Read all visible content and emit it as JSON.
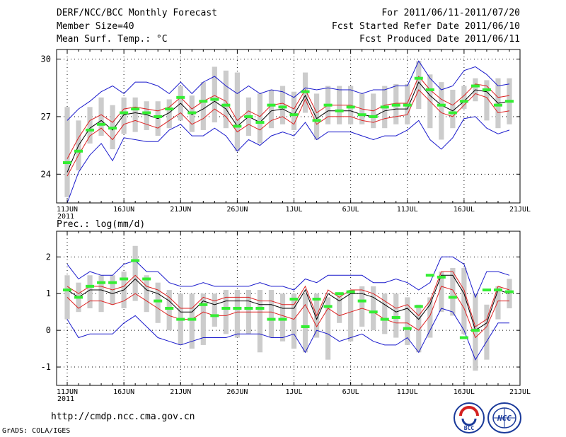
{
  "header": {
    "title": "DERF/NCC/BCC Monthly Forecast",
    "member_size": "Member Size=40",
    "variable1": "Mean Surf. Temp.: °C",
    "period": "For 2011/06/11-2011/07/20",
    "started": "Fcst Started Refer Date 2011/06/10",
    "produced": "Fcst Produced Date 2011/06/11"
  },
  "footer": {
    "url": "http://cmdp.ncc.cma.gov.cn",
    "credit": "GrADS: COLA/IGES",
    "logo_bcc": "BCC",
    "logo_ncc": "NCC"
  },
  "colors": {
    "box": "#cccccc",
    "median": "#000000",
    "inner": "#dd2222",
    "outer": "#1a1acc",
    "obs": "#33ee33",
    "grid": "#000000"
  },
  "chart_data": [
    {
      "type": "line",
      "title": "",
      "ylabel": "Mean Surf. Temp.: °C",
      "ylim": [
        22.5,
        30.5
      ],
      "yticks": [
        24,
        27,
        30
      ],
      "ytick_labels": [
        "24",
        "27",
        "30"
      ],
      "x_days": 40,
      "xtick_labels": [
        "11JUN",
        "16JUN",
        "21JUN",
        "26JUN",
        "1JUL",
        "6JUL",
        "11JUL",
        "16JUL",
        "21JUL"
      ],
      "year_label": "2011",
      "series": [
        {
          "name": "box_low",
          "values": [
            22.8,
            24.2,
            25.6,
            26.0,
            25.3,
            26.1,
            26.2,
            26.3,
            26.0,
            26.4,
            26.8,
            26.2,
            26.3,
            26.7,
            26.4,
            25.2,
            26.0,
            25.6,
            26.4,
            26.6,
            26.3,
            27.2,
            25.8,
            26.6,
            26.6,
            26.6,
            26.6,
            26.4,
            26.4,
            26.6,
            26.6,
            27.4,
            26.4,
            25.8,
            26.4,
            27.4,
            27.8,
            26.8,
            26.4,
            26.6
          ]
        },
        {
          "name": "box_high",
          "values": [
            27.5,
            26.8,
            27.5,
            28.0,
            27.6,
            28.0,
            28.0,
            27.8,
            27.8,
            27.9,
            28.6,
            28.1,
            28.8,
            29.6,
            29.4,
            29.3,
            28.0,
            28.2,
            28.4,
            28.6,
            28.3,
            29.3,
            28.2,
            28.6,
            28.6,
            28.6,
            28.2,
            28.2,
            28.6,
            28.7,
            28.7,
            29.9,
            29.2,
            28.8,
            28.4,
            28.6,
            29.0,
            28.9,
            29.0,
            29.0
          ]
        },
        {
          "name": "outer_low",
          "values": [
            22.5,
            24.1,
            25.0,
            25.6,
            24.7,
            25.9,
            25.8,
            25.7,
            25.7,
            26.3,
            26.6,
            26.0,
            26.0,
            26.4,
            26.0,
            25.2,
            25.8,
            25.5,
            26.0,
            26.2,
            26.0,
            26.7,
            25.8,
            26.2,
            26.2,
            26.2,
            26.0,
            25.8,
            26.0,
            26.0,
            26.3,
            26.8,
            25.8,
            25.3,
            25.9,
            26.9,
            27.0,
            26.4,
            26.1,
            26.3
          ]
        },
        {
          "name": "inner_low",
          "values": [
            23.9,
            25.0,
            26.0,
            26.4,
            25.8,
            26.6,
            26.8,
            26.6,
            26.4,
            26.8,
            27.2,
            26.6,
            26.9,
            27.4,
            27.0,
            26.2,
            26.6,
            26.3,
            26.8,
            27.0,
            26.6,
            27.9,
            26.6,
            27.0,
            27.0,
            27.0,
            26.8,
            26.7,
            26.9,
            27.0,
            27.1,
            28.4,
            27.8,
            27.2,
            27.0,
            27.6,
            28.2,
            28.0,
            27.2,
            27.3
          ]
        },
        {
          "name": "median",
          "values": [
            24.1,
            25.5,
            26.4,
            26.8,
            26.3,
            27.1,
            27.2,
            27.1,
            26.9,
            27.2,
            27.7,
            27.1,
            27.4,
            27.8,
            27.4,
            26.5,
            27.0,
            26.7,
            27.3,
            27.4,
            27.1,
            28.1,
            26.9,
            27.3,
            27.3,
            27.3,
            27.1,
            27.0,
            27.3,
            27.4,
            27.4,
            28.8,
            28.1,
            27.6,
            27.3,
            27.8,
            28.4,
            28.3,
            27.7,
            27.8
          ]
        },
        {
          "name": "inner_high",
          "values": [
            24.8,
            25.9,
            26.8,
            27.1,
            26.7,
            27.4,
            27.5,
            27.4,
            27.3,
            27.5,
            28.0,
            27.4,
            27.8,
            28.1,
            27.8,
            26.8,
            27.3,
            27.0,
            27.6,
            27.7,
            27.4,
            28.4,
            27.2,
            27.6,
            27.6,
            27.6,
            27.4,
            27.3,
            27.6,
            27.7,
            27.7,
            29.1,
            28.4,
            27.9,
            27.6,
            28.1,
            28.7,
            28.6,
            28.0,
            28.1
          ]
        },
        {
          "name": "outer_high",
          "values": [
            26.8,
            27.4,
            27.8,
            28.3,
            28.6,
            28.2,
            28.8,
            28.8,
            28.6,
            28.2,
            28.8,
            28.2,
            28.8,
            29.1,
            28.6,
            28.2,
            28.6,
            28.2,
            28.4,
            28.3,
            28.0,
            28.5,
            28.4,
            28.5,
            28.4,
            28.4,
            28.2,
            28.4,
            28.4,
            28.6,
            28.6,
            29.9,
            29.0,
            28.4,
            28.6,
            29.4,
            29.6,
            29.2,
            28.6,
            28.7
          ]
        },
        {
          "name": "observed",
          "values": [
            24.6,
            25.2,
            26.3,
            26.6,
            26.4,
            27.2,
            27.4,
            27.2,
            27.0,
            27.4,
            28.0,
            27.2,
            27.8,
            27.9,
            27.6,
            26.5,
            27.0,
            26.7,
            27.6,
            27.5,
            27.1,
            28.3,
            26.8,
            27.6,
            27.3,
            27.5,
            27.1,
            27.0,
            27.5,
            27.6,
            27.6,
            29.0,
            28.4,
            27.6,
            27.2,
            27.8,
            28.6,
            28.4,
            27.6,
            27.8
          ]
        }
      ]
    },
    {
      "type": "line",
      "title": "",
      "ylabel": "Prec.: log(mm/d)",
      "ylim": [
        -1.5,
        2.7
      ],
      "yticks": [
        -1,
        0,
        1,
        2
      ],
      "ytick_labels": [
        "-1",
        "0",
        "1",
        "2"
      ],
      "x_days": 40,
      "xtick_labels": [
        "11JUN",
        "16JUN",
        "21JUN",
        "26JUN",
        "1JUL",
        "6JUL",
        "11JUL",
        "16JUL",
        "21JUL"
      ],
      "year_label": "2011",
      "series": [
        {
          "name": "box_low",
          "values": [
            0.3,
            0.5,
            0.6,
            0.5,
            0.7,
            0.6,
            0.8,
            0.5,
            0.2,
            0.0,
            -0.4,
            -0.5,
            -0.4,
            0.1,
            -0.1,
            -0.2,
            -0.1,
            -0.6,
            -0.2,
            -0.3,
            -0.5,
            -0.6,
            -0.2,
            -0.8,
            0.2,
            -0.3,
            0.1,
            0.0,
            -0.1,
            -0.2,
            -0.4,
            -0.6,
            -0.2,
            0.5,
            0.4,
            -0.1,
            -1.1,
            -0.8,
            0.3,
            0.6
          ]
        },
        {
          "name": "box_high",
          "values": [
            1.5,
            1.3,
            1.5,
            1.5,
            1.5,
            1.6,
            2.3,
            1.5,
            1.3,
            1.1,
            1.0,
            1.0,
            1.0,
            1.0,
            1.1,
            1.1,
            1.1,
            1.1,
            1.1,
            1.0,
            1.0,
            1.0,
            1.0,
            0.9,
            1.0,
            1.1,
            1.2,
            1.2,
            1.0,
            1.0,
            0.9,
            0.7,
            0.9,
            1.6,
            1.7,
            1.7,
            1.0,
            0.7,
            1.2,
            1.4
          ]
        },
        {
          "name": "outer_low",
          "values": [
            0.3,
            -0.2,
            -0.1,
            -0.1,
            -0.1,
            0.2,
            0.4,
            0.1,
            -0.2,
            -0.3,
            -0.4,
            -0.3,
            -0.2,
            -0.2,
            -0.2,
            -0.1,
            -0.1,
            -0.1,
            -0.2,
            -0.2,
            -0.1,
            -0.6,
            0.0,
            -0.1,
            -0.3,
            -0.2,
            -0.1,
            -0.3,
            -0.4,
            -0.4,
            -0.2,
            -0.6,
            0.0,
            0.6,
            0.5,
            0.0,
            -0.8,
            -0.3,
            0.2,
            0.2
          ]
        },
        {
          "name": "inner_low",
          "values": [
            0.9,
            0.6,
            0.8,
            0.8,
            0.7,
            0.8,
            1.0,
            0.8,
            0.6,
            0.4,
            0.3,
            0.3,
            0.5,
            0.4,
            0.4,
            0.5,
            0.5,
            0.5,
            0.5,
            0.4,
            0.3,
            0.7,
            0.1,
            0.6,
            0.4,
            0.5,
            0.6,
            0.5,
            0.3,
            0.2,
            0.2,
            0.0,
            0.4,
            1.2,
            1.1,
            0.6,
            -0.2,
            0.1,
            0.8,
            0.8
          ]
        },
        {
          "name": "median",
          "values": [
            1.1,
            0.9,
            1.1,
            1.1,
            1.0,
            1.1,
            1.4,
            1.1,
            1.0,
            0.8,
            0.5,
            0.5,
            0.8,
            0.7,
            0.8,
            0.8,
            0.8,
            0.7,
            0.7,
            0.6,
            0.6,
            1.1,
            0.3,
            1.0,
            0.8,
            1.0,
            1.0,
            0.9,
            0.7,
            0.5,
            0.6,
            0.3,
            0.7,
            1.5,
            1.5,
            1.0,
            0.0,
            0.2,
            1.1,
            1.0
          ]
        },
        {
          "name": "inner_high",
          "values": [
            1.2,
            1.0,
            1.2,
            1.2,
            1.1,
            1.2,
            1.5,
            1.2,
            1.1,
            0.9,
            0.6,
            0.6,
            0.9,
            0.8,
            0.9,
            0.9,
            0.9,
            0.8,
            0.8,
            0.7,
            0.7,
            1.2,
            0.4,
            1.1,
            0.9,
            1.1,
            1.1,
            1.0,
            0.8,
            0.6,
            0.7,
            0.4,
            0.8,
            1.6,
            1.6,
            1.1,
            0.1,
            0.3,
            1.2,
            1.1
          ]
        },
        {
          "name": "outer_high",
          "values": [
            1.8,
            1.4,
            1.6,
            1.5,
            1.5,
            1.8,
            1.9,
            1.6,
            1.6,
            1.3,
            1.2,
            1.2,
            1.3,
            1.2,
            1.2,
            1.2,
            1.2,
            1.3,
            1.2,
            1.2,
            1.1,
            1.4,
            1.3,
            1.5,
            1.5,
            1.5,
            1.5,
            1.3,
            1.3,
            1.4,
            1.3,
            1.1,
            1.3,
            2.0,
            2.0,
            1.8,
            0.9,
            1.6,
            1.6,
            1.5
          ]
        },
        {
          "name": "observed",
          "values": [
            1.1,
            0.9,
            1.2,
            1.3,
            1.3,
            1.4,
            1.9,
            1.4,
            0.8,
            0.6,
            0.3,
            0.3,
            0.7,
            0.4,
            0.6,
            0.6,
            0.6,
            0.6,
            0.3,
            0.3,
            0.85,
            0.1,
            0.85,
            0.65,
            1.0,
            1.05,
            0.8,
            0.5,
            0.3,
            0.35,
            0.05,
            0.65,
            1.5,
            1.45,
            0.9,
            -0.2,
            0.0,
            1.1,
            1.1,
            1.05
          ]
        }
      ]
    }
  ]
}
